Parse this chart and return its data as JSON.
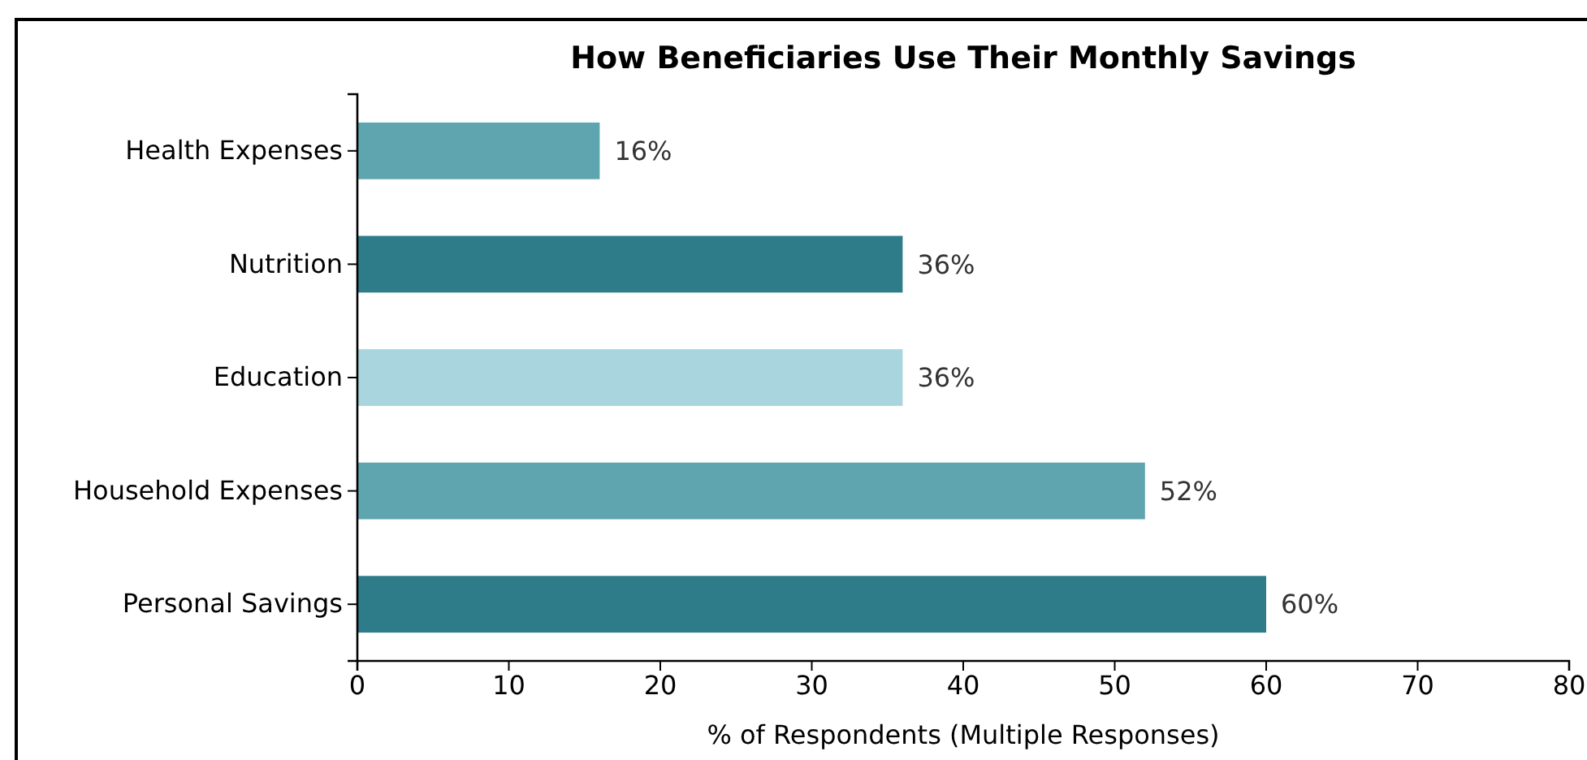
{
  "chart_data": {
    "type": "bar",
    "orientation": "horizontal",
    "title": "How Beneficiaries Use Their Monthly Savings",
    "xlabel": "% of Respondents (Multiple Responses)",
    "categories": [
      "Health Expenses",
      "Nutrition",
      "Education",
      "Household Expenses",
      "Personal Savings"
    ],
    "values": [
      16,
      36,
      36,
      52,
      60
    ],
    "colors": [
      "#5fa5b0",
      "#2e7c89",
      "#a8d5de",
      "#5fa5b0",
      "#2e7c89"
    ],
    "value_labels": [
      "16%",
      "36%",
      "36%",
      "52%",
      "60%"
    ],
    "xlim": [
      0,
      80
    ],
    "xticks": [
      0,
      10,
      20,
      30,
      40,
      50,
      60,
      70,
      80
    ],
    "grid": false
  }
}
